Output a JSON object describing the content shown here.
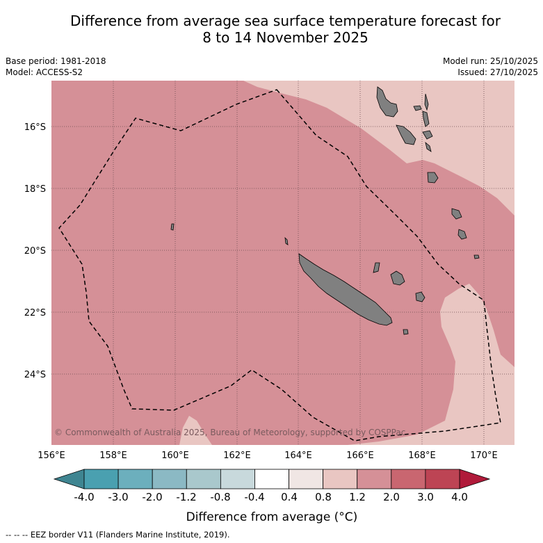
{
  "title": {
    "line1": "Difference from average sea surface temperature forecast for",
    "line2": "8 to 14 November 2025"
  },
  "meta": {
    "base_period": "Base period: 1981-2018",
    "model": "Model: ACCESS-S2",
    "model_run": "Model run: 25/10/2025",
    "issued": "Issued: 27/10/2025"
  },
  "map": {
    "copyright": "© Commonwealth of Australia 2025, Bureau of Meteorology, supported by COSPPac",
    "lon_ticks": [
      "156°E",
      "158°E",
      "160°E",
      "162°E",
      "164°E",
      "166°E",
      "168°E",
      "170°E"
    ],
    "lat_ticks": [
      "16°S",
      "18°S",
      "20°S",
      "22°S",
      "24°S"
    ],
    "colors": {
      "warm_1p2_2": "#d59097",
      "warm_0p8_1p2": "#e9c6c2",
      "land": "#808080",
      "eez_line": "#000000"
    }
  },
  "colorbar": {
    "title": "Difference from average (°C)",
    "tick_labels": [
      "-4.0",
      "-3.0",
      "-2.0",
      "-1.2",
      "-0.8",
      "-0.4",
      "0.4",
      "0.8",
      "1.2",
      "2.0",
      "3.0",
      "4.0"
    ],
    "colors": [
      "#4aa0b0",
      "#6cafbd",
      "#8bb9c4",
      "#a9c8cc",
      "#c8d9dc",
      "#ffffff",
      "#f0e6e4",
      "#e9c6c2",
      "#d59097",
      "#c96670",
      "#bd4454"
    ],
    "low_extend_color": "#3f8591",
    "high_extend_color": "#b01a3a"
  },
  "footer": {
    "eez_note": "--  --  -- EEZ border V11 (Flanders Marine Institute, 2019)."
  }
}
